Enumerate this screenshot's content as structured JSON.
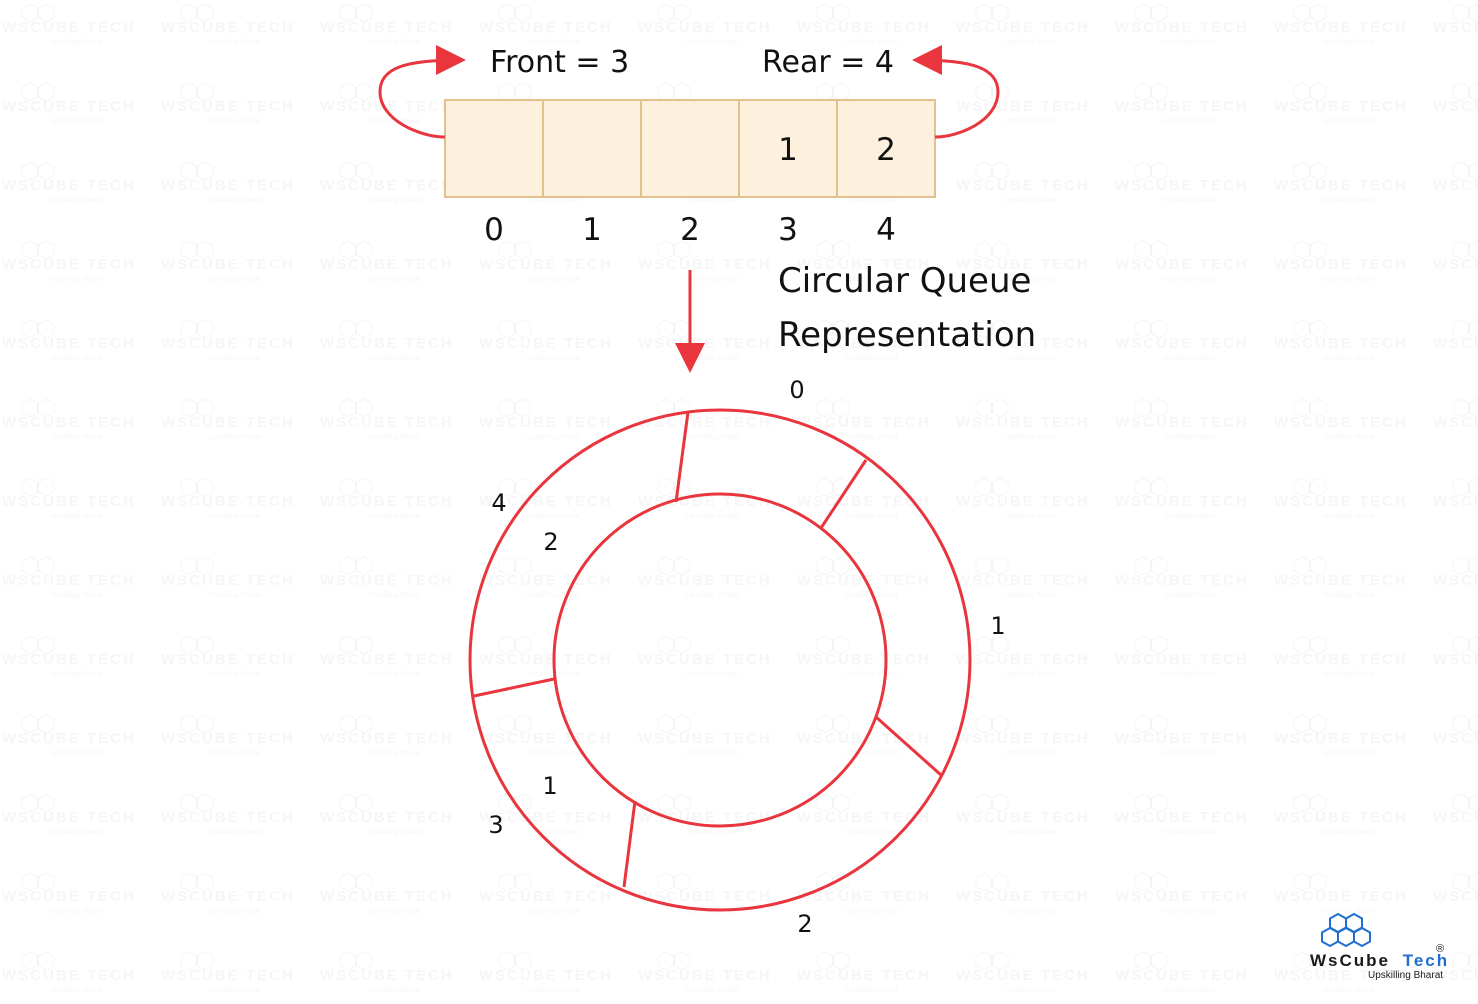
{
  "pointers": {
    "front_label": "Front = 3",
    "rear_label": "Rear = 4"
  },
  "array": {
    "cells": [
      "",
      "",
      "",
      "1",
      "2"
    ],
    "indices": [
      "0",
      "1",
      "2",
      "3",
      "4"
    ]
  },
  "caption": {
    "line1": "Circular Queue",
    "line2": "Representation"
  },
  "circle": {
    "outer_labels": [
      "0",
      "1",
      "2",
      "3",
      "4"
    ],
    "inner_values": [
      "1",
      "2"
    ]
  },
  "brand": {
    "name_part1": "WsCube",
    "name_part2": "Tech",
    "tagline": "Upskilling Bharat",
    "registered_mark": "®",
    "logo_icon": "hexagon-cluster-icon"
  },
  "colors": {
    "accent": "#e8353e",
    "cell_fill": "#fdf0dc",
    "cell_stroke": "#e3c18e",
    "brand_blue": "#1f6fd1"
  }
}
